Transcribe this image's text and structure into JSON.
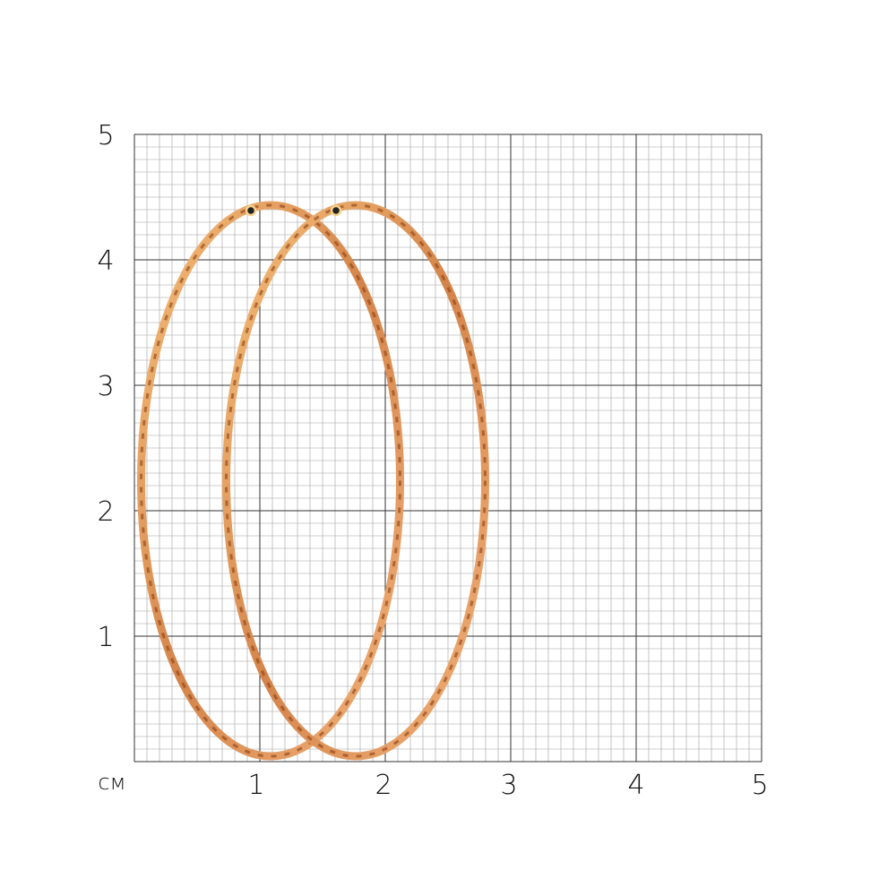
{
  "ruler": {
    "unit_label": "см",
    "y_labels": [
      "5",
      "4",
      "3",
      "2",
      "1"
    ],
    "x_labels": [
      "1",
      "2",
      "3",
      "4",
      "5"
    ],
    "range_cm": [
      0,
      5
    ],
    "minor_divisions_per_cm": 10
  },
  "product": {
    "item": "hoop earrings pair",
    "metal_color": "#d98a4a",
    "height_cm": 4.45,
    "width_cm": 2.15
  },
  "colors": {
    "major_grid": "#333333",
    "minor_grid": "#a0a0a0"
  }
}
